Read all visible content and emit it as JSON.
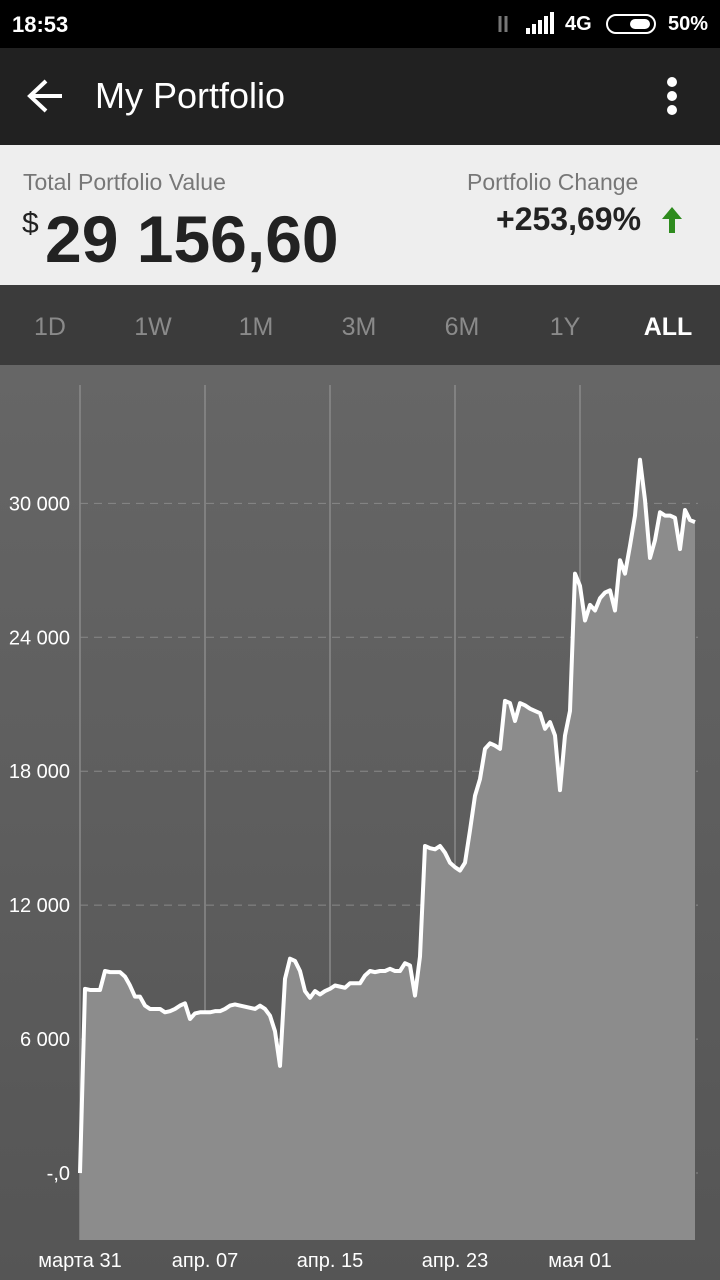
{
  "status_bar": {
    "time": "18:53",
    "network": "4G",
    "battery": "50%"
  },
  "app_bar": {
    "title": "My Portfolio"
  },
  "summary": {
    "value_label": "Total Portfolio Value",
    "currency": "$",
    "value": "29 156,60",
    "change_label": "Portfolio Change",
    "change": "+253,69%"
  },
  "tabs": {
    "items": [
      "1D",
      "1W",
      "1M",
      "3M",
      "6M",
      "1Y",
      "ALL"
    ],
    "selected_index": 6
  },
  "chart_data": {
    "type": "line",
    "color": "#ffffff",
    "fill": "#8c8c8c",
    "grid": true,
    "xlim": [
      0,
      123.6
    ],
    "xticks": [
      {
        "value": 0,
        "label": "марта 31"
      },
      {
        "value": 25,
        "label": "апр. 07"
      },
      {
        "value": 50,
        "label": "апр. 15"
      },
      {
        "value": 75,
        "label": "апр. 23"
      },
      {
        "value": 100,
        "label": "мая 01"
      }
    ],
    "ylim": [
      -3000,
      35300
    ],
    "yticks": [
      {
        "value": 0,
        "label": "-,0"
      },
      {
        "value": 6000,
        "label": "6 000"
      },
      {
        "value": 12000,
        "label": "12 000"
      },
      {
        "value": 18000,
        "label": "18 000"
      },
      {
        "value": 24000,
        "label": "24 000"
      },
      {
        "value": 30000,
        "label": "30 000"
      }
    ],
    "series": [
      {
        "color": "#ffffff",
        "values": [
          0,
          8250,
          8200,
          8200,
          8200,
          9050,
          9000,
          9000,
          9000,
          8800,
          8400,
          7900,
          7900,
          7500,
          7350,
          7350,
          7350,
          7200,
          7250,
          7350,
          7500,
          7600,
          6900,
          7150,
          7200,
          7200,
          7200,
          7250,
          7250,
          7350,
          7500,
          7550,
          7500,
          7450,
          7400,
          7350,
          7500,
          7350,
          7050,
          6350,
          4800,
          8700,
          9600,
          9500,
          9050,
          8150,
          7850,
          8150,
          8000,
          8150,
          8250,
          8400,
          8350,
          8300,
          8500,
          8500,
          8500,
          8850,
          9050,
          9000,
          9050,
          9050,
          9150,
          9050,
          9050,
          9400,
          9300,
          7950,
          9700,
          14650,
          14550,
          14500,
          14650,
          14350,
          13900,
          13700,
          13550,
          13900,
          15350,
          16900,
          17650,
          19000,
          19250,
          19150,
          19000,
          21150,
          21050,
          20250,
          21050,
          20950,
          20800,
          20700,
          20600,
          19900,
          20200,
          19600,
          17150,
          19600,
          20700,
          26850,
          26300,
          24750,
          25450,
          25200,
          25750,
          26000,
          26100,
          25200,
          27450,
          26850,
          28100,
          29450,
          31950,
          30150,
          27550,
          28350,
          29600,
          29450,
          29450,
          29350,
          27950,
          29700,
          29250,
          29156.6
        ]
      }
    ]
  }
}
